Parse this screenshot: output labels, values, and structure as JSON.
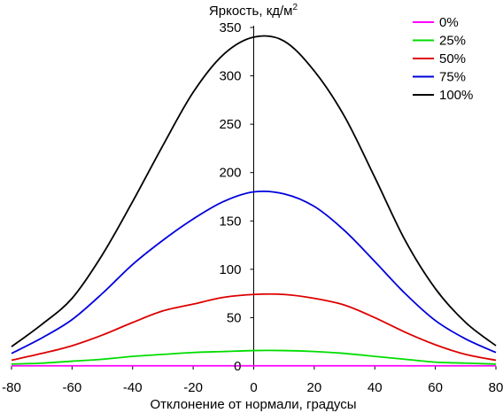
{
  "chart_data": {
    "type": "line",
    "title": "",
    "ylabel_text": "Яркость, кд/м",
    "ylabel_superscript": "2",
    "xlabel": "Отклонение от нормали, градусы",
    "xlim": [
      -80,
      80
    ],
    "ylim": [
      0,
      350
    ],
    "xticks": [
      -80,
      -60,
      -40,
      -20,
      0,
      20,
      40,
      60,
      80
    ],
    "yticks": [
      0,
      50,
      100,
      150,
      200,
      250,
      300,
      350
    ],
    "x_tick_labels": [
      "-80",
      "-60",
      "-40",
      "-20",
      "0",
      "20",
      "40",
      "60",
      "80"
    ],
    "y_tick_labels": [
      "0",
      "50",
      "100",
      "150",
      "200",
      "250",
      "300",
      "350"
    ],
    "grid": false,
    "legend_position": "top-right",
    "x": [
      -80,
      -70,
      -60,
      -50,
      -40,
      -30,
      -20,
      -10,
      0,
      10,
      20,
      30,
      40,
      50,
      60,
      70,
      80
    ],
    "series": [
      {
        "name": "0%",
        "color": "#ff00ff",
        "values": [
          0.2,
          0.2,
          0.2,
          0.2,
          0.2,
          0.2,
          0.2,
          0.2,
          0.2,
          0.2,
          0.2,
          0.2,
          0.2,
          0.2,
          0.2,
          0.2,
          0.2
        ]
      },
      {
        "name": "25%",
        "color": "#00dd00",
        "values": [
          2,
          3,
          5,
          7,
          10,
          12,
          14,
          15,
          16,
          16,
          15,
          13,
          10,
          7,
          4,
          3,
          2
        ]
      },
      {
        "name": "50%",
        "color": "#dd0000",
        "values": [
          6,
          13,
          21,
          32,
          45,
          57,
          64,
          71,
          74,
          74,
          70,
          63,
          50,
          35,
          22,
          12,
          6
        ]
      },
      {
        "name": "75%",
        "color": "#0000dd",
        "values": [
          13,
          29,
          48,
          75,
          105,
          130,
          152,
          170,
          180,
          178,
          165,
          140,
          108,
          75,
          47,
          28,
          14
        ]
      },
      {
        "name": "100%",
        "color": "#000000",
        "values": [
          20,
          43,
          70,
          115,
          170,
          228,
          283,
          322,
          340,
          336,
          305,
          258,
          195,
          130,
          80,
          45,
          21
        ]
      }
    ]
  }
}
